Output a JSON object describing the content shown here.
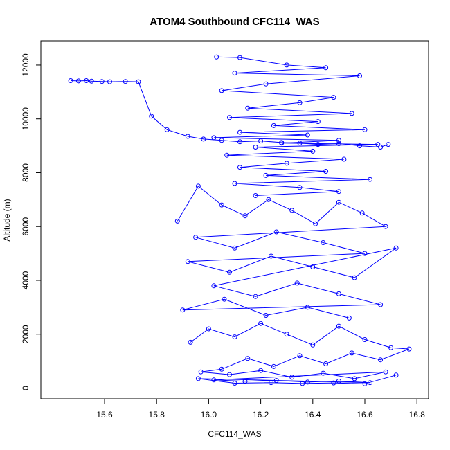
{
  "chart_data": {
    "type": "line",
    "title": "ATOM4 Southbound CFC114_WAS",
    "xlabel": "CFC114_WAS",
    "ylabel": "Altitude (m)",
    "xlim": [
      15.4,
      16.8
    ],
    "ylim": [
      0,
      12500
    ],
    "xticks": [
      15.6,
      15.8,
      16.0,
      16.2,
      16.4,
      16.6,
      16.8
    ],
    "yticks": [
      0,
      2000,
      4000,
      6000,
      8000,
      10000,
      12000
    ],
    "series_color": "#0000ff",
    "marker": "open-circle",
    "grid": false,
    "legend": "none",
    "series": [
      {
        "x": [
          15.47,
          15.5,
          15.53,
          15.55,
          15.59,
          15.62,
          15.68,
          15.73,
          15.78,
          15.84,
          15.92,
          15.98,
          16.05,
          16.12,
          16.2,
          16.28,
          16.35,
          16.42,
          16.5,
          16.58,
          16.66,
          16.69
        ],
        "y": [
          11420,
          11410,
          11420,
          11400,
          11390,
          11380,
          11390,
          11380,
          10100,
          9600,
          9350,
          9250,
          9200,
          9150,
          9180,
          9120,
          9100,
          9050,
          9080,
          9000,
          8950,
          9050
        ]
      },
      {
        "x": [
          16.03,
          16.12,
          16.3,
          16.45,
          16.1,
          16.58,
          16.22,
          16.05,
          16.48,
          16.35,
          16.15,
          16.55,
          16.08,
          16.42,
          16.25,
          16.6,
          16.12,
          16.38,
          16.02,
          16.5,
          16.28,
          16.65,
          16.18,
          16.4,
          16.07,
          16.52,
          16.3,
          16.12,
          16.45,
          16.22,
          16.62,
          16.1,
          16.35,
          16.5,
          16.18
        ],
        "y": [
          12300,
          12280,
          12000,
          11900,
          11700,
          11600,
          11300,
          11050,
          10800,
          10600,
          10400,
          10200,
          10050,
          9900,
          9750,
          9600,
          9500,
          9400,
          9300,
          9200,
          9100,
          9050,
          8950,
          8800,
          8650,
          8500,
          8350,
          8200,
          8050,
          7900,
          7750,
          7600,
          7450,
          7300,
          7150
        ]
      },
      {
        "x": [
          15.88,
          15.96,
          16.05,
          16.14,
          16.23,
          16.32,
          16.41,
          16.5,
          16.59,
          16.68,
          15.95,
          16.1,
          16.26,
          16.44,
          16.6,
          15.92,
          16.08,
          16.24,
          16.4,
          16.56,
          16.72,
          16.02,
          16.18,
          16.34,
          16.5,
          16.66,
          15.9,
          16.06,
          16.22,
          16.38,
          16.54
        ],
        "y": [
          6200,
          7500,
          6800,
          6400,
          7000,
          6600,
          6100,
          6900,
          6500,
          6000,
          5600,
          5200,
          5800,
          5400,
          5000,
          4700,
          4300,
          4900,
          4500,
          4100,
          5200,
          3800,
          3400,
          3900,
          3500,
          3100,
          2900,
          3300,
          2700,
          3000,
          2600
        ]
      },
      {
        "x": [
          15.93,
          16.0,
          16.1,
          16.2,
          16.3,
          16.4,
          16.5,
          16.6,
          16.7,
          16.77,
          16.66,
          16.55,
          16.45,
          16.35,
          16.25,
          16.15,
          16.05,
          15.97,
          16.08,
          16.2,
          16.32,
          16.44,
          16.56,
          16.68,
          16.02,
          16.14,
          16.26,
          16.38,
          16.5,
          16.62,
          15.96,
          16.1,
          16.24,
          16.36,
          16.48,
          16.6,
          16.72
        ],
        "y": [
          1700,
          2200,
          1900,
          2400,
          2000,
          1600,
          2300,
          1800,
          1500,
          1450,
          1050,
          1300,
          900,
          1200,
          800,
          1100,
          700,
          600,
          500,
          650,
          400,
          550,
          350,
          600,
          300,
          250,
          280,
          220,
          260,
          200,
          350,
          180,
          200,
          170,
          190,
          160,
          480
        ]
      }
    ]
  }
}
